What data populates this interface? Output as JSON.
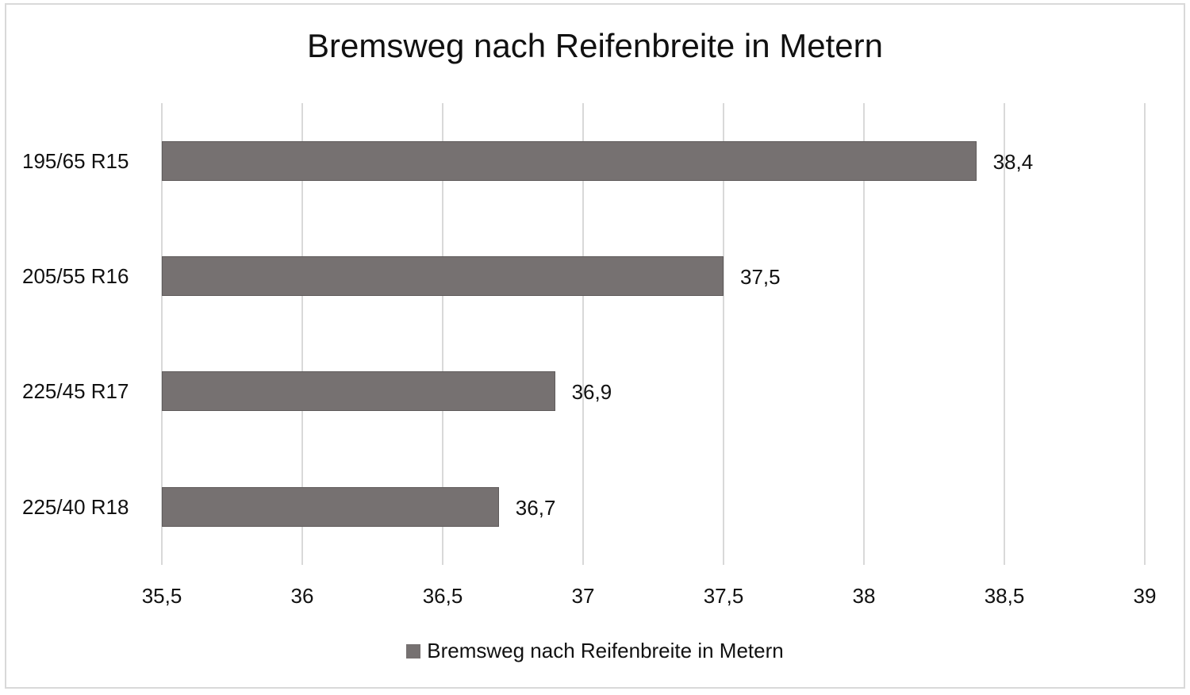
{
  "chart_data": {
    "type": "bar",
    "orientation": "horizontal",
    "title": "Bremsweg nach Reifenbreite in Metern",
    "categories": [
      "195/65 R15",
      "205/55 R16",
      "225/45 R17",
      "225/40 R18"
    ],
    "series": [
      {
        "name": "Bremsweg nach Reifenbreite in Metern",
        "color": "#767171",
        "values": [
          38.4,
          37.5,
          36.9,
          36.7
        ],
        "labels": [
          "38,4",
          "37,5",
          "36,9",
          "36,7"
        ]
      }
    ],
    "xlabel": "",
    "ylabel": "",
    "xlim": [
      35.5,
      39
    ],
    "x_ticks": [
      "35,5",
      "36",
      "36,5",
      "37",
      "37,5",
      "38",
      "38,5",
      "39"
    ],
    "x_tick_values": [
      35.5,
      36,
      36.5,
      37,
      37.5,
      38,
      38.5,
      39
    ],
    "grid": true,
    "legend_position": "bottom"
  },
  "legend": {
    "label": "Bremsweg nach Reifenbreite in Metern"
  }
}
